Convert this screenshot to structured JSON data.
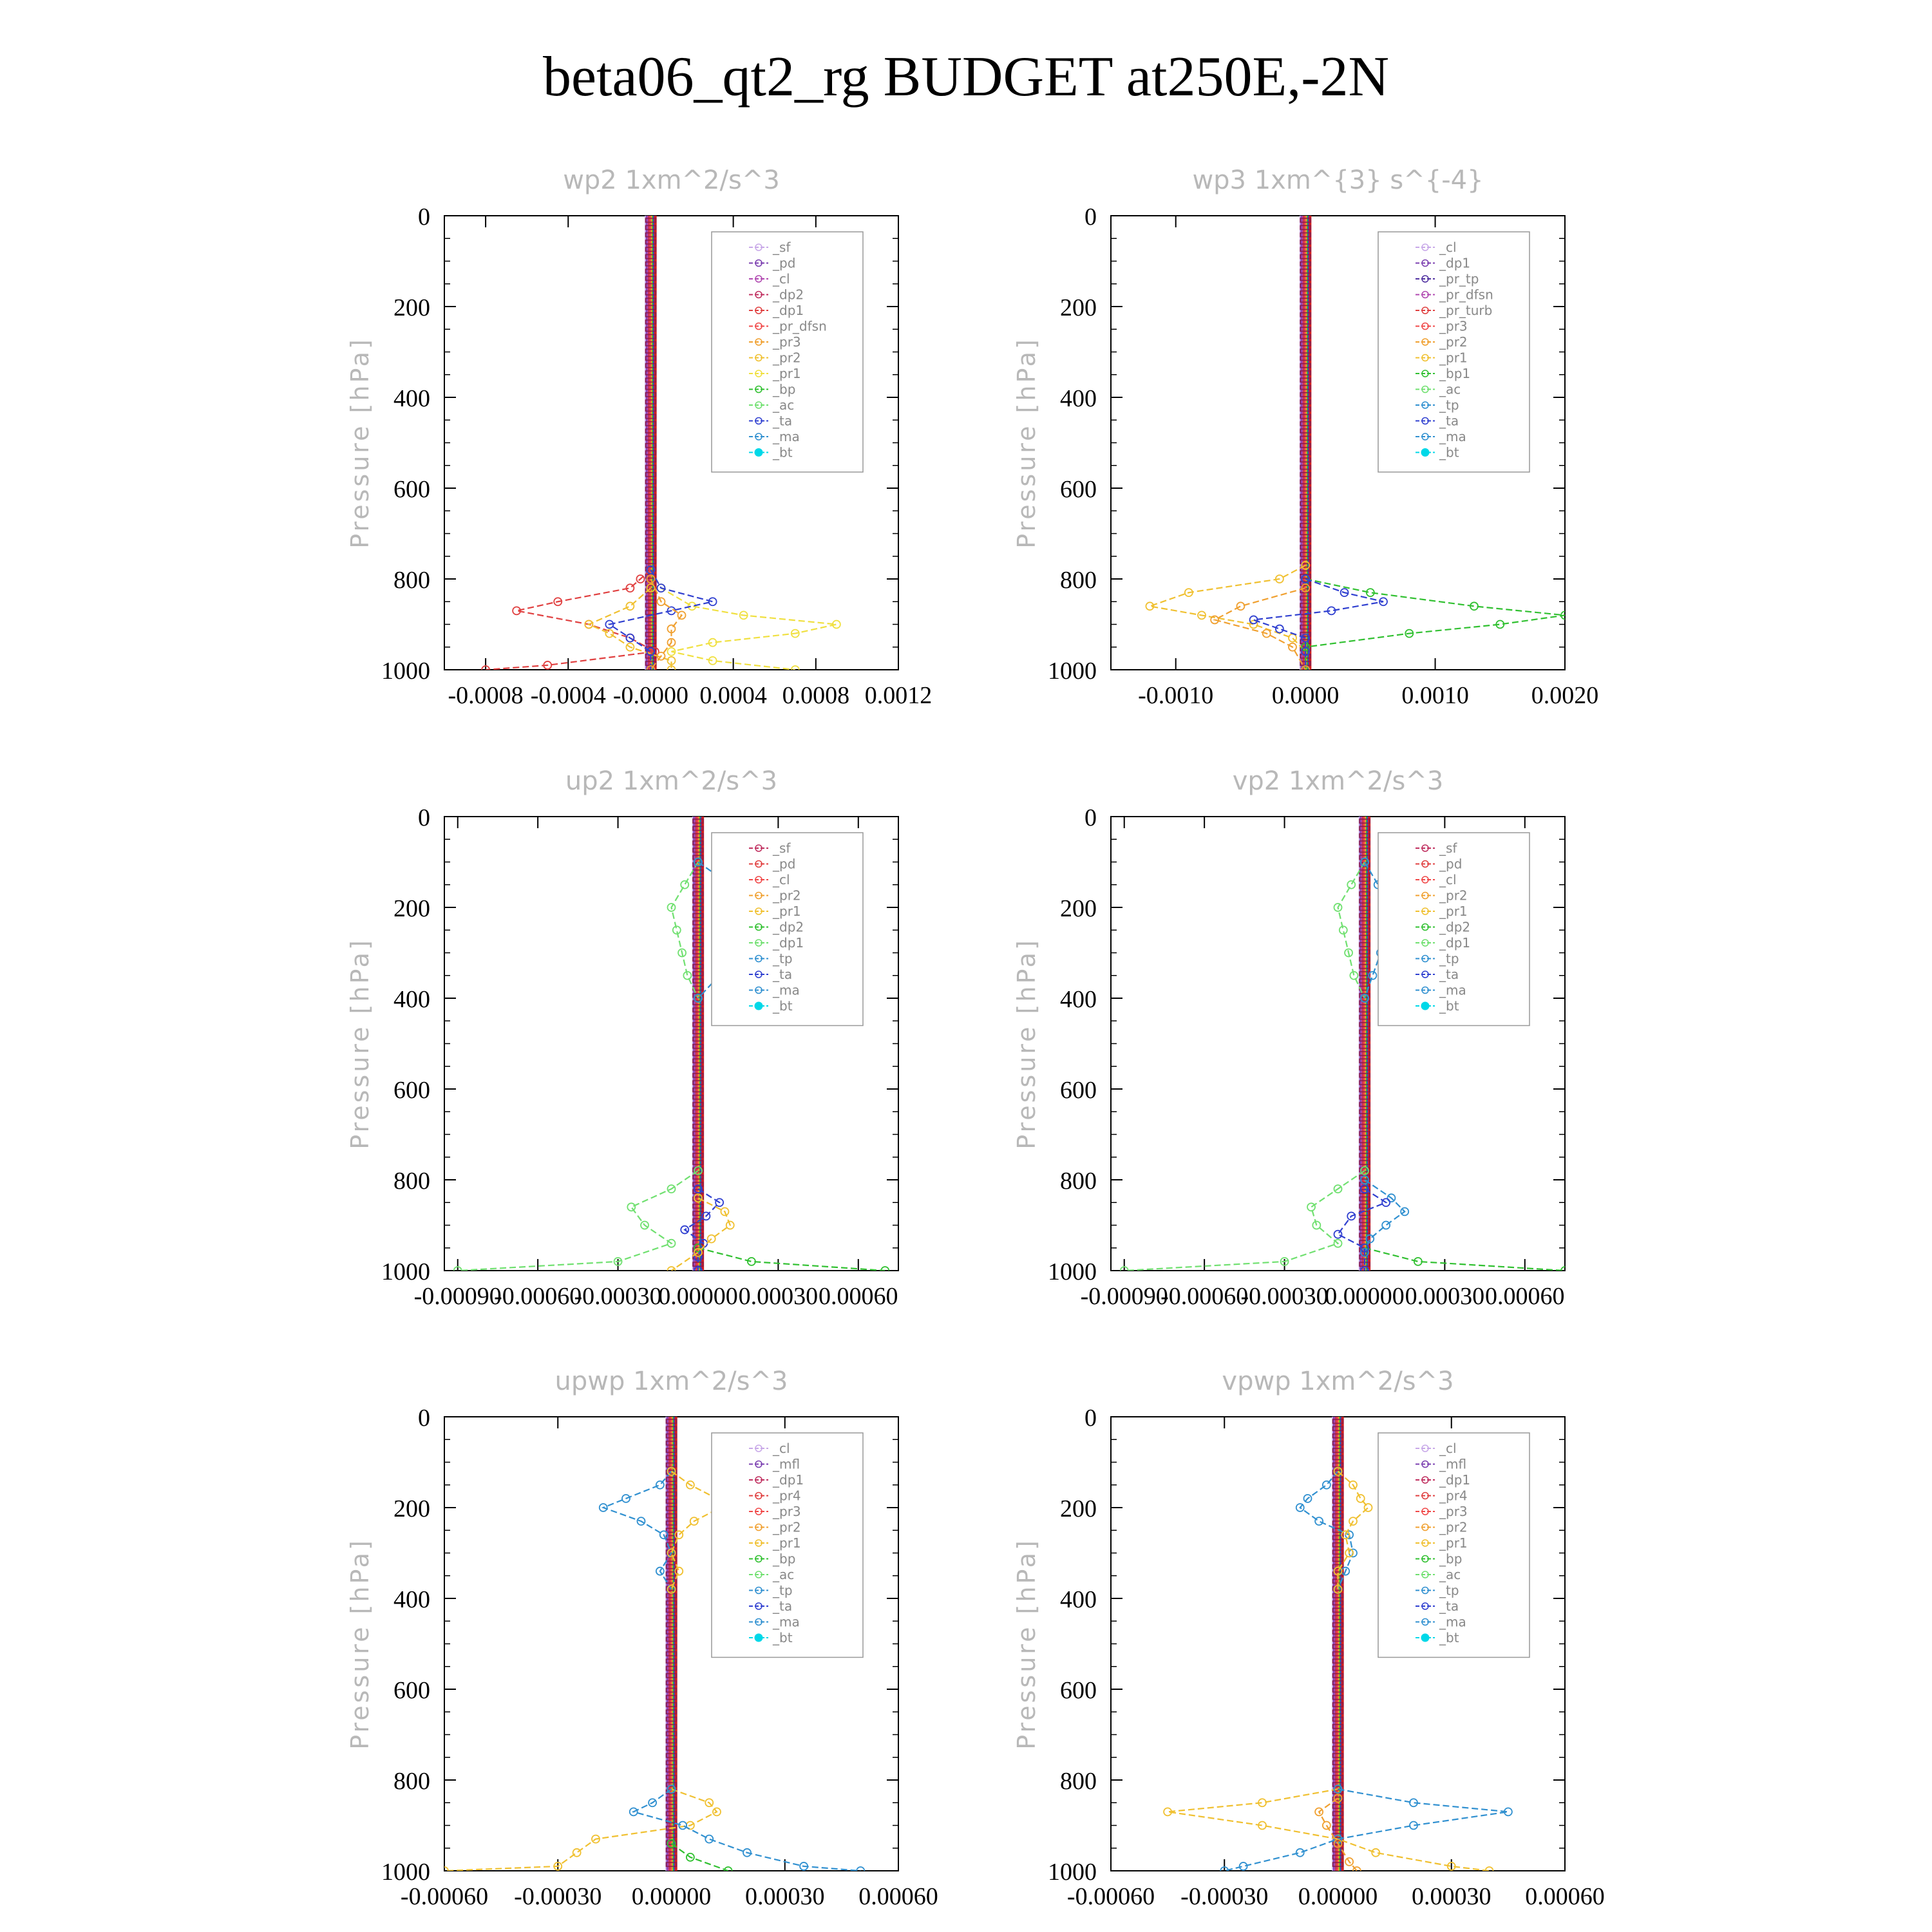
{
  "figure_title": "beta06_qt2_rg  BUDGET at250E,-2N",
  "chart_data": [
    {
      "type": "line",
      "title": "wp2   1xm^2/s^3",
      "xlabel": "",
      "ylabel": "Pressure [hPa]",
      "ylim": [
        1000,
        0
      ],
      "xlim": [
        -0.001,
        0.0012
      ],
      "xticks": [
        "-0.0008",
        "-0.0004",
        "-0.0000",
        "0.0004",
        "0.0008",
        "0.0012"
      ],
      "xtick_values": [
        -0.0008,
        -0.0004,
        0.0,
        0.0004,
        0.0008,
        0.0012
      ],
      "yticks": [
        "0",
        "200",
        "400",
        "600",
        "800",
        "1000"
      ],
      "legend": [
        "_sf",
        "_pd",
        "_cl",
        "_dp2",
        "_dp1",
        "_pr_dfsn",
        "_pr3",
        "_pr2",
        "_pr1",
        "_bp",
        "_ac",
        "_ta",
        "_ma",
        "_bt"
      ],
      "colors": [
        "#c8a8e8",
        "#7b3fb0",
        "#b048b0",
        "#c03060",
        "#e04040",
        "#f04848",
        "#f0a030",
        "#f0c030",
        "#f0e040",
        "#30c030",
        "#70e070",
        "#3040d0",
        "#3090d0",
        "#00d8e8"
      ],
      "series": [
        {
          "name": "_dp1",
          "p": [
            780,
            800,
            820,
            850,
            870,
            900,
            930,
            960,
            990,
            1000
          ],
          "values": [
            0,
            -5e-05,
            -0.0001,
            -0.00045,
            -0.00065,
            -0.0003,
            -0.0001,
            2e-05,
            -0.0005,
            -0.0008
          ]
        },
        {
          "name": "_pr1",
          "p": [
            780,
            820,
            860,
            880,
            900,
            920,
            940,
            960,
            980,
            1000
          ],
          "values": [
            0,
            5e-05,
            0.0002,
            0.00045,
            0.0009,
            0.0007,
            0.0003,
            0.0001,
            0.0003,
            0.0007
          ]
        },
        {
          "name": "_pr2",
          "p": [
            820,
            860,
            900,
            920,
            950,
            980,
            1000
          ],
          "values": [
            0,
            -0.0001,
            -0.0003,
            -0.0002,
            -0.0001,
            0.0001,
            0.0001
          ]
        },
        {
          "name": "_ta",
          "p": [
            780,
            820,
            850,
            870,
            900,
            930,
            960,
            1000
          ],
          "values": [
            0,
            5e-05,
            0.0003,
            0.0001,
            -0.0002,
            -0.0001,
            0.0,
            0.0
          ]
        },
        {
          "name": "_pr3",
          "p": [
            800,
            850,
            880,
            910,
            940,
            970,
            1000
          ],
          "values": [
            0,
            5e-05,
            0.00015,
            0.0001,
            0.0001,
            5e-05,
            0.0
          ]
        }
      ]
    },
    {
      "type": "line",
      "title": "wp3   1xm^{3} s^{-4}",
      "xlabel": "",
      "ylabel": "Pressure [hPa]",
      "ylim": [
        1000,
        0
      ],
      "xlim": [
        -0.0015,
        0.002
      ],
      "xticks": [
        "-0.0010",
        "0.0000",
        "0.0010",
        "0.0020"
      ],
      "xtick_values": [
        -0.001,
        0.0,
        0.001,
        0.002
      ],
      "yticks": [
        "0",
        "200",
        "400",
        "600",
        "800",
        "1000"
      ],
      "legend": [
        "_cl",
        "_dp1",
        "_pr_tp",
        "_pr_dfsn",
        "_pr_turb",
        "_pr3",
        "_pr2",
        "_pr1",
        "_bp1",
        "_ac",
        "_tp",
        "_ta",
        "_ma",
        "_bt"
      ],
      "colors": [
        "#c8a8e8",
        "#7b3fb0",
        "#5030a0",
        "#b048b0",
        "#e04040",
        "#f04848",
        "#f0a030",
        "#f0c030",
        "#30c030",
        "#70e070",
        "#3090d0",
        "#3040d0",
        "#3090d0",
        "#00d8e8"
      ],
      "series": [
        {
          "name": "_pr1",
          "p": [
            770,
            800,
            830,
            860,
            880,
            900,
            930,
            960,
            1000
          ],
          "values": [
            0,
            -0.0002,
            -0.0009,
            -0.0012,
            -0.0008,
            -0.0004,
            -0.0001,
            0.0,
            0.0
          ]
        },
        {
          "name": "_bp1",
          "p": [
            800,
            830,
            860,
            880,
            900,
            920,
            950,
            1000
          ],
          "values": [
            0,
            0.0005,
            0.0013,
            0.002,
            0.0015,
            0.0008,
            0.0,
            0.0
          ]
        },
        {
          "name": "_ta",
          "p": [
            800,
            830,
            850,
            870,
            890,
            910,
            930,
            960,
            1000
          ],
          "values": [
            0,
            0.0003,
            0.0006,
            0.0002,
            -0.0004,
            -0.0002,
            0.0,
            0.0,
            0.0
          ]
        },
        {
          "name": "_pr2",
          "p": [
            820,
            860,
            890,
            920,
            950,
            1000
          ],
          "values": [
            0,
            -0.0005,
            -0.0007,
            -0.0003,
            -0.0001,
            0.0
          ]
        }
      ]
    },
    {
      "type": "line",
      "title": "up2   1xm^2/s^3",
      "xlabel": "",
      "ylabel": "Pressure [hPa]",
      "ylim": [
        1000,
        0
      ],
      "xlim": [
        -0.00095,
        0.00075
      ],
      "xticks": [
        "-0.00090",
        "-0.00060",
        "-0.00030",
        "0.00000",
        "0.00030",
        "0.00060"
      ],
      "xtick_values": [
        -0.0009,
        -0.0006,
        -0.0003,
        0.0,
        0.0003,
        0.0006
      ],
      "yticks": [
        "0",
        "200",
        "400",
        "600",
        "800",
        "1000"
      ],
      "legend": [
        "_sf",
        "_pd",
        "_cl",
        "_pr2",
        "_pr1",
        "_dp2",
        "_dp1",
        "_tp",
        "_ta",
        "_ma",
        "_bt"
      ],
      "colors": [
        "#c03060",
        "#e04040",
        "#f04848",
        "#f0a030",
        "#f0c030",
        "#30c030",
        "#70e070",
        "#3090d0",
        "#3040d0",
        "#3090d0",
        "#00d8e8"
      ],
      "series": [
        {
          "name": "_dp1",
          "p": [
            100,
            150,
            200,
            250,
            300,
            350,
            400
          ],
          "values": [
            0,
            -5e-05,
            -0.0001,
            -8e-05,
            -6e-05,
            -4e-05,
            0.0
          ]
        },
        {
          "name": "_tp",
          "p": [
            100,
            150,
            200,
            250,
            300,
            350,
            400
          ],
          "values": [
            0,
            0.00012,
            0.0002,
            0.0001,
            0.00012,
            8e-05,
            0.0
          ]
        },
        {
          "name": "_dp1",
          "p": [
            780,
            820,
            860,
            900,
            940,
            980,
            1000
          ],
          "values": [
            0,
            -0.0001,
            -0.00025,
            -0.0002,
            -0.0001,
            -0.0003,
            -0.0009
          ]
        },
        {
          "name": "_dp2",
          "p": [
            950,
            980,
            1000
          ],
          "values": [
            0,
            0.0002,
            0.0007
          ]
        },
        {
          "name": "_ta",
          "p": [
            820,
            850,
            880,
            910,
            940,
            970,
            1000
          ],
          "values": [
            0,
            8e-05,
            3e-05,
            -5e-05,
            2e-05,
            0.0,
            0.0
          ]
        },
        {
          "name": "_pr1",
          "p": [
            840,
            870,
            900,
            930,
            960,
            1000
          ],
          "values": [
            0,
            0.0001,
            0.00012,
            5e-05,
            0.0,
            -0.0001
          ]
        }
      ]
    },
    {
      "type": "line",
      "title": "vp2   1xm^2/s^3",
      "xlabel": "",
      "ylabel": "Pressure [hPa]",
      "ylim": [
        1000,
        0
      ],
      "xlim": [
        -0.00095,
        0.00075
      ],
      "xticks": [
        "-0.00090",
        "-0.00060",
        "-0.00030",
        "0.00000",
        "0.00030",
        "0.00060"
      ],
      "xtick_values": [
        -0.0009,
        -0.0006,
        -0.0003,
        0.0,
        0.0003,
        0.0006
      ],
      "yticks": [
        "0",
        "200",
        "400",
        "600",
        "800",
        "1000"
      ],
      "legend": [
        "_sf",
        "_pd",
        "_cl",
        "_pr2",
        "_pr1",
        "_dp2",
        "_dp1",
        "_tp",
        "_ta",
        "_ma",
        "_bt"
      ],
      "colors": [
        "#c03060",
        "#e04040",
        "#f04848",
        "#f0a030",
        "#f0c030",
        "#30c030",
        "#70e070",
        "#3090d0",
        "#3040d0",
        "#3090d0",
        "#00d8e8"
      ],
      "series": [
        {
          "name": "_dp1",
          "p": [
            100,
            150,
            200,
            250,
            300,
            350,
            400
          ],
          "values": [
            0,
            -5e-05,
            -0.0001,
            -8e-05,
            -6e-05,
            -4e-05,
            0.0
          ]
        },
        {
          "name": "_tp",
          "p": [
            100,
            150,
            200,
            250,
            300,
            350,
            400
          ],
          "values": [
            0,
            5e-05,
            0.0001,
            8e-05,
            6e-05,
            3e-05,
            0.0
          ]
        },
        {
          "name": "_dp1",
          "p": [
            780,
            820,
            860,
            900,
            940,
            980,
            1000
          ],
          "values": [
            0,
            -0.0001,
            -0.0002,
            -0.00018,
            -0.0001,
            -0.0003,
            -0.0009
          ]
        },
        {
          "name": "_dp2",
          "p": [
            950,
            980,
            1000
          ],
          "values": [
            0,
            0.0002,
            0.00075
          ]
        },
        {
          "name": "_tp",
          "p": [
            800,
            840,
            870,
            900,
            930,
            960,
            1000
          ],
          "values": [
            0,
            0.0001,
            0.00015,
            8e-05,
            2e-05,
            0.0,
            0.0
          ]
        },
        {
          "name": "_ta",
          "p": [
            820,
            850,
            880,
            920,
            950,
            1000
          ],
          "values": [
            0,
            8e-05,
            -5e-05,
            -0.0001,
            0.0,
            0.0
          ]
        }
      ]
    },
    {
      "type": "line",
      "title": "upwp   1xm^2/s^3",
      "xlabel": "",
      "ylabel": "Pressure [hPa]",
      "ylim": [
        1000,
        0
      ],
      "xlim": [
        -0.0006,
        0.0006
      ],
      "xticks": [
        "-0.00060",
        "-0.00030",
        "0.00000",
        "0.00030",
        "0.00060"
      ],
      "xtick_values": [
        -0.0006,
        -0.0003,
        0.0,
        0.0003,
        0.0006
      ],
      "yticks": [
        "0",
        "200",
        "400",
        "600",
        "800",
        "1000"
      ],
      "legend": [
        "_cl",
        "_mfl",
        "_dp1",
        "_pr4",
        "_pr3",
        "_pr2",
        "_pr1",
        "_bp",
        "_ac",
        "_tp",
        "_ta",
        "_ma",
        "_bt"
      ],
      "colors": [
        "#c8a8e8",
        "#7b3fb0",
        "#c03060",
        "#e04040",
        "#f04848",
        "#f0a030",
        "#f0c030",
        "#30c030",
        "#70e070",
        "#3090d0",
        "#3040d0",
        "#3090d0",
        "#00d8e8"
      ],
      "series": [
        {
          "name": "_tp",
          "p": [
            120,
            150,
            180,
            200,
            230,
            260,
            300,
            340,
            380
          ],
          "values": [
            0,
            -3e-05,
            -0.00012,
            -0.00018,
            -8e-05,
            -2e-05,
            0.0,
            -3e-05,
            0.0
          ]
        },
        {
          "name": "_pr1",
          "p": [
            120,
            150,
            180,
            200,
            230,
            260,
            300,
            340,
            380
          ],
          "values": [
            0,
            5e-05,
            0.00012,
            0.00013,
            6e-05,
            2e-05,
            0.0,
            2e-05,
            0.0
          ]
        },
        {
          "name": "_pr1",
          "p": [
            820,
            850,
            870,
            900,
            930,
            960,
            990,
            1000
          ],
          "values": [
            0,
            0.0001,
            0.00012,
            5e-05,
            -0.0002,
            -0.00025,
            -0.0003,
            -0.0006
          ]
        },
        {
          "name": "_tp",
          "p": [
            820,
            850,
            870,
            900,
            930,
            960,
            990,
            1000
          ],
          "values": [
            0,
            -5e-05,
            -0.0001,
            3e-05,
            0.0001,
            0.0002,
            0.00035,
            0.0005
          ]
        },
        {
          "name": "_bp",
          "p": [
            940,
            970,
            1000
          ],
          "values": [
            0,
            5e-05,
            0.00015
          ]
        }
      ]
    },
    {
      "type": "line",
      "title": "vpwp   1xm^2/s^3",
      "xlabel": "",
      "ylabel": "Pressure [hPa]",
      "ylim": [
        1000,
        0
      ],
      "xlim": [
        -0.0006,
        0.0006
      ],
      "xticks": [
        "-0.00060",
        "-0.00030",
        "0.00000",
        "0.00030",
        "0.00060"
      ],
      "xtick_values": [
        -0.0006,
        -0.0003,
        0.0,
        0.0003,
        0.0006
      ],
      "yticks": [
        "0",
        "200",
        "400",
        "600",
        "800",
        "1000"
      ],
      "legend": [
        "_cl",
        "_mfl",
        "_dp1",
        "_pr4",
        "_pr3",
        "_pr2",
        "_pr1",
        "_bp",
        "_ac",
        "_tp",
        "_ta",
        "_ma",
        "_bt"
      ],
      "colors": [
        "#c8a8e8",
        "#7b3fb0",
        "#c03060",
        "#e04040",
        "#f04848",
        "#f0a030",
        "#f0c030",
        "#30c030",
        "#70e070",
        "#3090d0",
        "#3040d0",
        "#3090d0",
        "#00d8e8"
      ],
      "series": [
        {
          "name": "_tp",
          "p": [
            120,
            150,
            180,
            200,
            230,
            260,
            300,
            340,
            380
          ],
          "values": [
            0,
            -3e-05,
            -8e-05,
            -0.0001,
            -5e-05,
            3e-05,
            4e-05,
            2e-05,
            0.0
          ]
        },
        {
          "name": "_pr1",
          "p": [
            120,
            150,
            180,
            200,
            230,
            260,
            300,
            340,
            380
          ],
          "values": [
            0,
            4e-05,
            6e-05,
            8e-05,
            4e-05,
            2e-05,
            3e-05,
            0.0,
            0.0
          ]
        },
        {
          "name": "_pr1",
          "p": [
            820,
            850,
            870,
            900,
            930,
            960,
            990,
            1000
          ],
          "values": [
            0,
            -0.0002,
            -0.00045,
            -0.0002,
            0.0,
            0.0001,
            0.0003,
            0.0004
          ]
        },
        {
          "name": "_tp",
          "p": [
            820,
            850,
            870,
            900,
            930,
            960,
            990,
            1000
          ],
          "values": [
            0,
            0.0002,
            0.00045,
            0.0002,
            0.0,
            -0.0001,
            -0.00025,
            -0.0003
          ]
        },
        {
          "name": "_pr2",
          "p": [
            840,
            870,
            900,
            940,
            980,
            1000
          ],
          "values": [
            0,
            -5e-05,
            -3e-05,
            0.0,
            3e-05,
            5e-05
          ]
        }
      ]
    }
  ]
}
